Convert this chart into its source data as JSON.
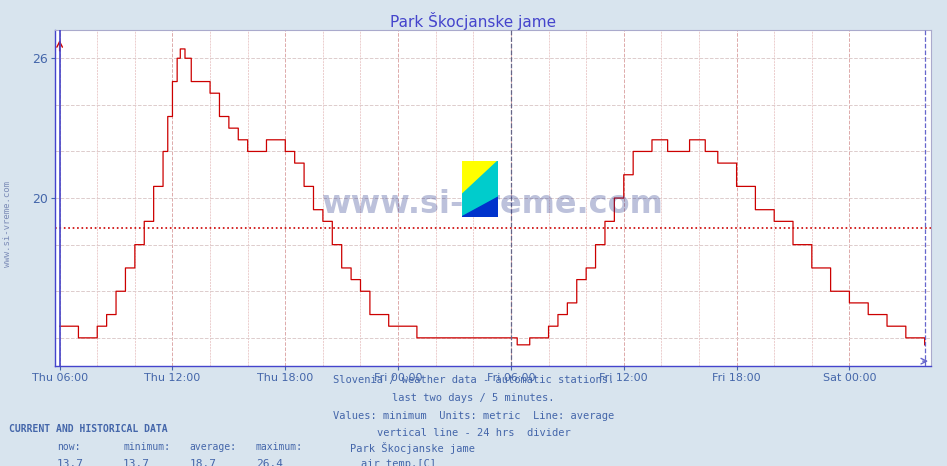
{
  "title": "Park Škocjanske jame",
  "title_color": "#4444cc",
  "page_bg_color": "#d8e4ee",
  "plot_bg_color": "#ffffff",
  "line_color": "#cc0000",
  "avg_line_color": "#cc0000",
  "avg_value": 18.7,
  "y_min": 13.0,
  "y_max": 27.0,
  "y_ticks": [
    20,
    26
  ],
  "x_tick_labels": [
    "Thu 06:00",
    "Thu 12:00",
    "Thu 18:00",
    "Fri 00:00",
    "Fri 06:00",
    "Fri 12:00",
    "Fri 18:00",
    "Sat 00:00"
  ],
  "grid_color_v": "#ddaaaa",
  "grid_color_h": "#ddcccc",
  "info_text_color": "#4466aa",
  "watermark_text": "www.si-vreme.com",
  "footer_line1": "Slovenia / weather data - automatic stations.",
  "footer_line2": "last two days / 5 minutes.",
  "footer_line3": "Values: minimum  Units: metric  Line: average",
  "footer_line4": "vertical line - 24 hrs  divider",
  "current_label": "CURRENT AND HISTORICAL DATA",
  "now_val": "13.7",
  "min_val": "13.7",
  "avg_val": "18.7",
  "max_val": "26.4",
  "station_name": "Park Škocjanske jame",
  "series_label": "air temp.[C]",
  "left_label": "www.si-vreme.com"
}
